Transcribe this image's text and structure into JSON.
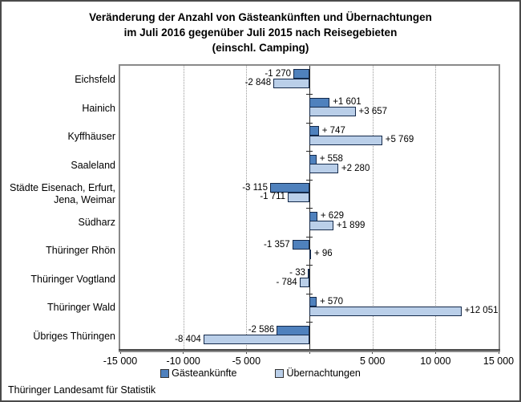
{
  "title": {
    "line1": "Veränderung der Anzahl von Gästeankünften und Übernachtungen",
    "line2": "im Juli 2016 gegenüber Juli 2015 nach Reisegebieten",
    "line3": "(einschl. Camping)"
  },
  "footer": {
    "source": "Thüringer Landesamt für Statistik"
  },
  "colors": {
    "series1": "#4F81BD",
    "series2": "#BACFE9",
    "bar_border": "#14294A",
    "gridline": "#9A9A9A",
    "zero_line": "#262626",
    "plot_border": "#8A8A8A",
    "axis_line": "#4A4A4A"
  },
  "legend": {
    "items": [
      {
        "label": "Gästeankünfte",
        "color_key": "series1"
      },
      {
        "label": "Übernachtungen",
        "color_key": "series2"
      }
    ]
  },
  "x_axis": {
    "min": -15000,
    "max": 15000,
    "step": 5000,
    "ticks": [
      {
        "value": -15000,
        "label": "-15 000"
      },
      {
        "value": -10000,
        "label": "-10 000"
      },
      {
        "value": -5000,
        "label": "-5 000"
      },
      {
        "value": 0,
        "label": ""
      },
      {
        "value": 5000,
        "label": "5 000"
      },
      {
        "value": 10000,
        "label": "10 000"
      },
      {
        "value": 15000,
        "label": "15 000"
      }
    ]
  },
  "chart_data": {
    "type": "bar",
    "orientation": "horizontal",
    "title": "Veränderung der Anzahl von Gästeankünften und Übernachtungen im Juli 2016 gegenüber Juli 2015 nach Reisegebieten (einschl. Camping)",
    "xlim": [
      -15000,
      15000
    ],
    "grid": "vertical-dotted",
    "legend_position": "bottom",
    "categories": [
      "Eichsfeld",
      "Hainich",
      "Kyffhäuser",
      "Saaleland",
      "Städte Eisenach, Erfurt, Jena, Weimar",
      "Südharz",
      "Thüringer Rhön",
      "Thüringer Vogtland",
      "Thüringer Wald",
      "Übriges Thüringen"
    ],
    "series": [
      {
        "name": "Gästeankünfte",
        "values": [
          -1270,
          1601,
          747,
          558,
          -3115,
          629,
          -1357,
          -33,
          570,
          -2586
        ],
        "labels": [
          "-1 270",
          "+1 601",
          "+ 747",
          "+ 558",
          "-3 115",
          "+ 629",
          "-1 357",
          "- 33",
          "+ 570",
          "-2 586"
        ]
      },
      {
        "name": "Übernachtungen",
        "values": [
          -2848,
          3657,
          5769,
          2280,
          -1711,
          1899,
          96,
          -784,
          12051,
          -8404
        ],
        "labels": [
          "-2 848",
          "+3 657",
          "+5 769",
          "+2 280",
          "-1 711",
          "+1 899",
          "+ 96",
          "- 784",
          "+12 051",
          "-8 404"
        ]
      }
    ]
  }
}
